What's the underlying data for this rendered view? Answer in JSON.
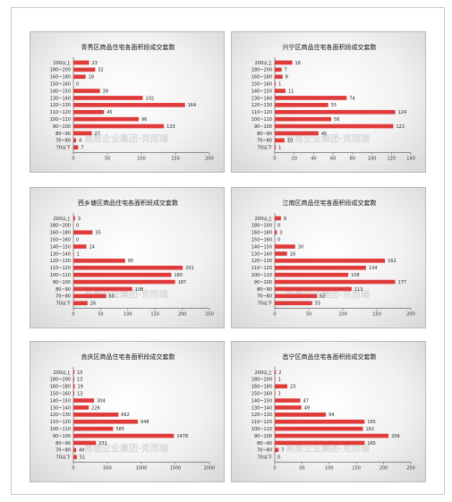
{
  "chart_data": [
    {
      "type": "bar",
      "title": "青秀区商品住宅各面积段成交套数",
      "categories": [
        "200以上",
        "180~200",
        "160~180",
        "150~160",
        "140~150",
        "130~140",
        "120~130",
        "110~120",
        "100~110",
        "90~100",
        "80~90",
        "70~80",
        "70以下"
      ],
      "values": [
        23,
        32,
        18,
        0,
        39,
        102,
        164,
        45,
        96,
        133,
        27,
        4,
        7
      ],
      "xlim": [
        0,
        200
      ],
      "xticks": [
        0,
        50,
        100,
        150,
        200
      ],
      "bar_color": "#e03a3a"
    },
    {
      "type": "bar",
      "title": "兴宁区商品住宅各面积段成交套数",
      "categories": [
        "200以上",
        "180~200",
        "160~180",
        "150~160",
        "140~150",
        "130~140",
        "120~130",
        "110~120",
        "100~110",
        "90~100",
        "80~90",
        "70~80",
        "70以下"
      ],
      "values": [
        18,
        7,
        8,
        1,
        11,
        74,
        55,
        124,
        58,
        122,
        45,
        10,
        1
      ],
      "xlim": [
        0,
        140
      ],
      "xticks": [
        0,
        20,
        40,
        60,
        80,
        100,
        120,
        140
      ],
      "bar_color": "#e03a3a"
    },
    {
      "type": "bar",
      "title": "西乡塘区商品住宅各面积段成交套数",
      "categories": [
        "200以上",
        "180~200",
        "160~180",
        "150~160",
        "140~150",
        "130~140",
        "120~130",
        "110~120",
        "100~110",
        "90~100",
        "80~90",
        "70~80",
        "70以下"
      ],
      "values": [
        3,
        0,
        35,
        0,
        24,
        1,
        95,
        201,
        180,
        187,
        108,
        60,
        26
      ],
      "xlim": [
        0,
        250
      ],
      "xticks": [
        0,
        50,
        100,
        150,
        200,
        250
      ],
      "bar_color": "#e03a3a"
    },
    {
      "type": "bar",
      "title": "江南区商品住宅各面积段成交套数",
      "categories": [
        "200以上",
        "180~200",
        "160~180",
        "150~160",
        "140~150",
        "130~140",
        "120~130",
        "110~120",
        "100~110",
        "90~100",
        "80~90",
        "70~80",
        "70以下"
      ],
      "values": [
        9,
        0,
        3,
        0,
        30,
        18,
        162,
        134,
        108,
        177,
        113,
        62,
        55
      ],
      "xlim": [
        0,
        200
      ],
      "xticks": [
        0,
        50,
        100,
        150,
        200
      ],
      "bar_color": "#e03a3a"
    },
    {
      "type": "bar",
      "title": "良庆区商品住宅各面积段成交套数",
      "categories": [
        "200以上",
        "180~200",
        "160~180",
        "150~160",
        "140~150",
        "130~140",
        "120~130",
        "110~120",
        "100~110",
        "90~100",
        "80~90",
        "70~80",
        "70以下"
      ],
      "values": [
        15,
        13,
        19,
        13,
        304,
        226,
        662,
        948,
        585,
        1478,
        331,
        40,
        51
      ],
      "xlim": [
        0,
        2000
      ],
      "xticks": [
        0,
        500,
        1000,
        1500,
        2000
      ],
      "bar_color": "#e03a3a"
    },
    {
      "type": "bar",
      "title": "邕宁区商品住宅各面积段成交套数",
      "categories": [
        "200以上",
        "180~200",
        "160~180",
        "150~160",
        "140~150",
        "130~140",
        "120~130",
        "110~120",
        "100~110",
        "90~100",
        "80~90",
        "70~80",
        "70以下"
      ],
      "values": [
        2,
        1,
        23,
        1,
        47,
        49,
        94,
        165,
        162,
        209,
        165,
        7,
        0
      ],
      "xlim": [
        0,
        250
      ],
      "xticks": [
        0,
        50,
        100,
        150,
        200,
        250
      ],
      "bar_color": "#e03a3a"
    }
  ],
  "watermark": "易居企业集团·克而瑞"
}
